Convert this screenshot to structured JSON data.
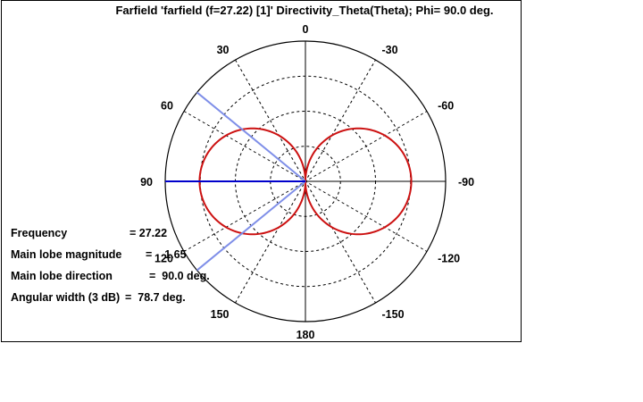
{
  "chart_data": {
    "type": "polar",
    "title": "Farfield 'farfield (f=27.22) [1]' Directivity_Theta(Theta); Phi=  90.0 deg.",
    "angle_ticks": [
      "0",
      "-30",
      "-60",
      "-90",
      "-120",
      "-150",
      "180",
      "150",
      "120",
      "90",
      "60",
      "30"
    ],
    "angle_tick_values": [
      0,
      -30,
      -60,
      -90,
      -120,
      -150,
      180,
      150,
      120,
      90,
      60,
      30
    ],
    "grid": true,
    "pattern": {
      "description": "Directivity vs theta (figure-eight dipole pattern)",
      "theta_deg": [
        0,
        15,
        30,
        45,
        60,
        75,
        90,
        105,
        120,
        135,
        150,
        165,
        180,
        -15,
        -30,
        -45,
        -60,
        -75,
        -90,
        -105,
        -120,
        -135,
        -150,
        -165
      ],
      "relative_magnitude": [
        0.0,
        0.26,
        0.5,
        0.71,
        0.87,
        0.97,
        1.0,
        0.97,
        0.87,
        0.71,
        0.5,
        0.26,
        0.0,
        0.26,
        0.5,
        0.71,
        0.87,
        0.97,
        1.0,
        0.97,
        0.87,
        0.71,
        0.5,
        0.26
      ],
      "color": "#cc1111"
    },
    "main_lobe_direction_deg": 90,
    "half_power_lines_deg": [
      50.65,
      129.35
    ],
    "colors": {
      "main_lobe": "#0000cc",
      "half_power": "#7f8fe8",
      "grid": "#000000"
    }
  },
  "info": {
    "frequency_label": "Frequency",
    "frequency_value": "= 27.22",
    "magnitude_label": "Main lobe magnitude",
    "magnitude_value": "=    1.65",
    "direction_label": "Main lobe direction",
    "direction_value": "=  90.0 deg.",
    "width_label": "Angular width (3 dB)",
    "width_value": "=  78.7 deg."
  }
}
